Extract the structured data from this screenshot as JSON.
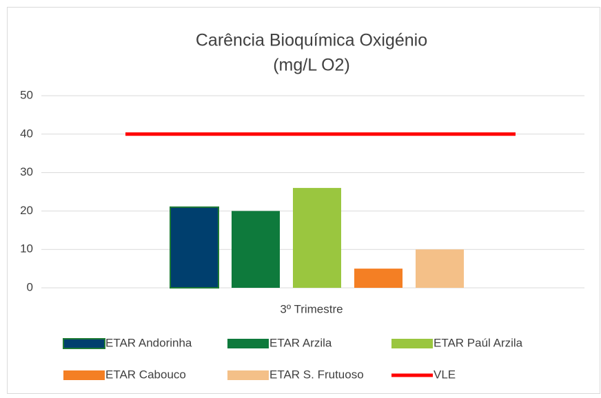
{
  "chart_data": {
    "type": "bar",
    "title": [
      "Carência Bioquímica Oxigénio",
      "(mg/L O2)"
    ],
    "categories": [
      "3º Trimestre"
    ],
    "series": [
      {
        "name": "ETAR Andorinha",
        "color": "#003f6e",
        "values": [
          21
        ]
      },
      {
        "name": "ETAR Arzila",
        "color": "#0e7a3c",
        "values": [
          20
        ]
      },
      {
        "name": "ETAR Paúl Arzila",
        "color": "#9ac63f",
        "values": [
          26
        ]
      },
      {
        "name": "ETAR Cabouco",
        "color": "#f47f24",
        "values": [
          5
        ]
      },
      {
        "name": "ETAR S. Frutuoso",
        "color": "#f4c088",
        "values": [
          10
        ]
      },
      {
        "name": "VLE",
        "color": "#ff0000",
        "type": "line",
        "values": [
          40
        ]
      }
    ],
    "ylim": [
      0,
      50
    ],
    "yticks": [
      0,
      10,
      20,
      30,
      40,
      50
    ],
    "grid": true,
    "legend": "bottom"
  }
}
